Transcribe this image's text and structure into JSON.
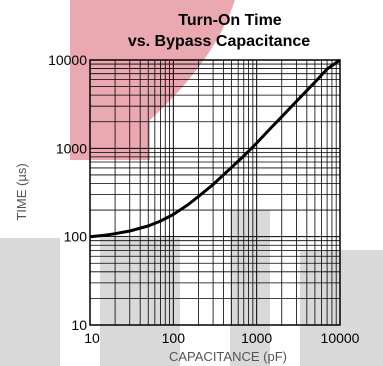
{
  "chart_data": {
    "type": "line",
    "title_line1": "Turn-On Time",
    "title_line2": "vs. Bypass Capacitance",
    "xlabel": "CAPACITANCE (pF)",
    "ylabel": "TIME (µs)",
    "xscale": "log",
    "yscale": "log",
    "xlim": [
      10,
      10000
    ],
    "ylim": [
      10,
      10000
    ],
    "xticks": [
      "10",
      "100",
      "1000",
      "10000"
    ],
    "yticks": [
      "10",
      "100",
      "1000",
      "10000"
    ],
    "grid": true,
    "series": [
      {
        "x": [
          10,
          15,
          20,
          30,
          50,
          70,
          100,
          150,
          200,
          300,
          500,
          700,
          1000,
          1500,
          2000,
          3000,
          5000,
          7000,
          10000
        ],
        "y": [
          100,
          104,
          108,
          116,
          132,
          150,
          178,
          230,
          285,
          390,
          610,
          820,
          1150,
          1720,
          2280,
          3400,
          5600,
          7900,
          11000
        ]
      }
    ],
    "colors": {
      "line": "#000000",
      "grid": "#000000",
      "watermark_red": "#e8a0a8",
      "watermark_gray": "#d9d9d9"
    }
  }
}
